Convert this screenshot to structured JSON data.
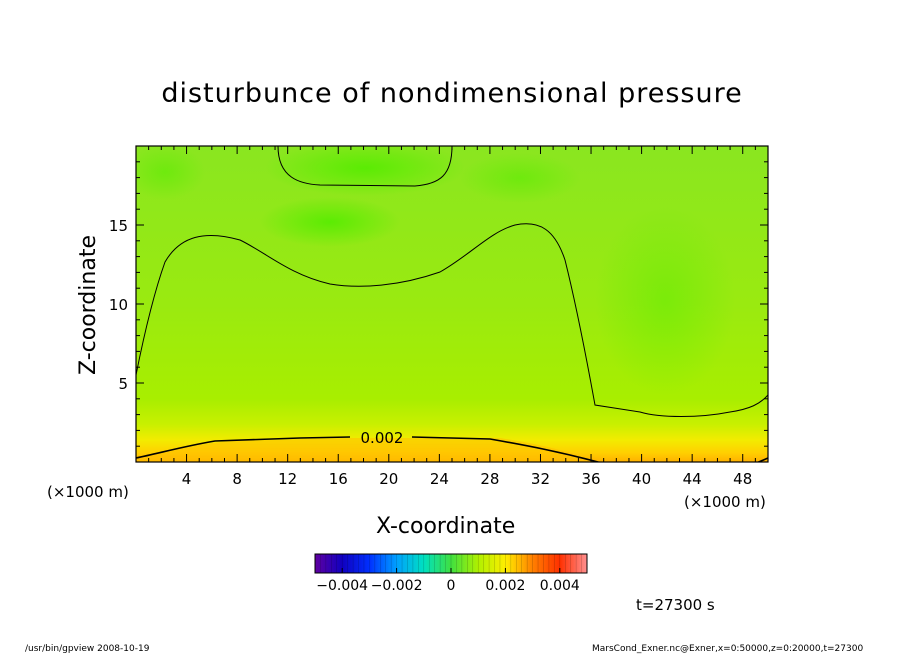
{
  "chart_data": {
    "type": "heatmap",
    "title": "disturbunce of nondimensional pressure",
    "xlabel": "X-coordinate",
    "ylabel": "Z-coordinate",
    "x_unit_left": "(×1000 m)",
    "x_unit_right": "(×1000 m)",
    "xlim": [
      0,
      50
    ],
    "ylim": [
      0,
      20
    ],
    "x_ticks": [
      "4",
      "8",
      "12",
      "16",
      "20",
      "24",
      "28",
      "32",
      "36",
      "40",
      "44",
      "48"
    ],
    "y_ticks": [
      "5",
      "10",
      "15"
    ],
    "contour_label": "0.002",
    "colorbar": {
      "range": [
        -0.005,
        0.005
      ],
      "tick_labels": [
        "−0.004",
        "−0.002",
        "0",
        "0.002",
        "0.004"
      ],
      "tick_values": [
        -0.004,
        -0.002,
        0,
        0.002,
        0.004
      ]
    },
    "time_label": "t=27300 s"
  },
  "footer": {
    "left": "/usr/bin/gpview   2008-10-19",
    "right": "MarsCond_Exner.nc@Exner,x=0:50000,z=0:20000,t=27300"
  }
}
